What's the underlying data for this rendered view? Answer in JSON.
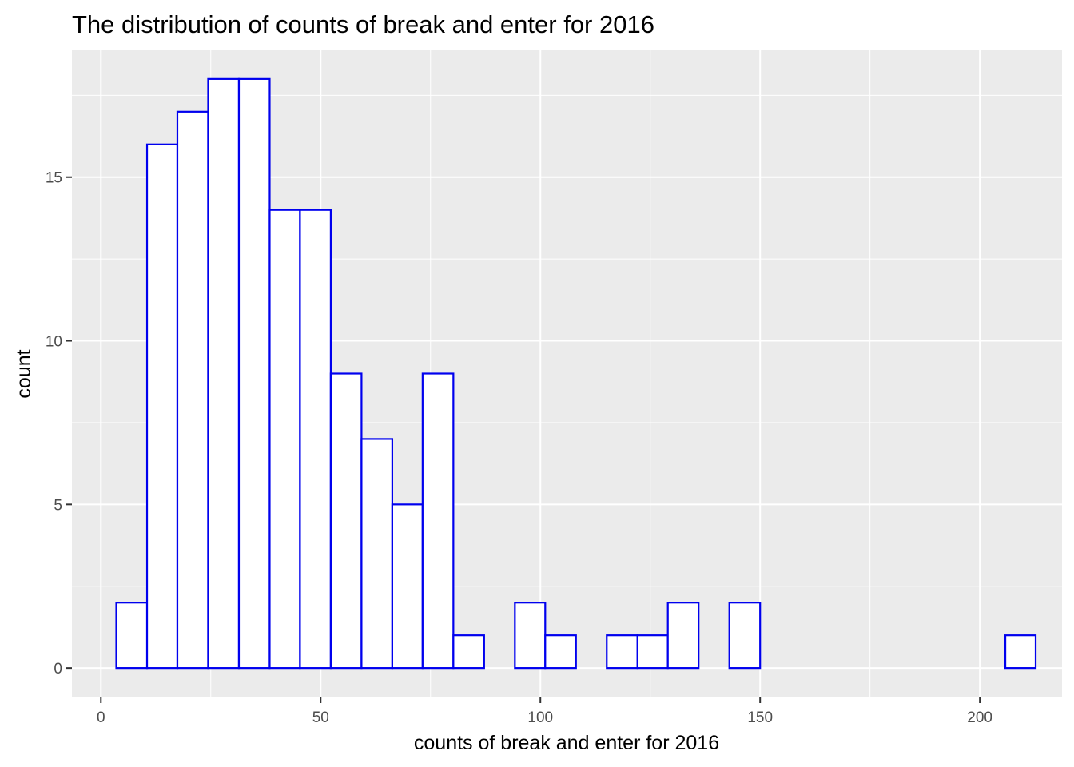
{
  "chart_data": {
    "type": "bar",
    "title": "The distribution of counts of break and enter for 2016",
    "xlabel": "counts of break and enter for 2016",
    "ylabel": "count",
    "xlim": [
      -6.6,
      218.7
    ],
    "ylim": [
      -0.9,
      18.9
    ],
    "x_ticks": [
      0,
      50,
      100,
      150,
      200
    ],
    "y_ticks": [
      0,
      5,
      10,
      15
    ],
    "bin_width": 6.975,
    "bins": [
      {
        "x0": 3.5,
        "x1": 10.5,
        "count": 2
      },
      {
        "x0": 10.5,
        "x1": 17.4,
        "count": 16
      },
      {
        "x0": 17.4,
        "x1": 24.4,
        "count": 17
      },
      {
        "x0": 24.4,
        "x1": 31.4,
        "count": 18
      },
      {
        "x0": 31.4,
        "x1": 38.4,
        "count": 18
      },
      {
        "x0": 38.4,
        "x1": 45.3,
        "count": 14
      },
      {
        "x0": 45.3,
        "x1": 52.3,
        "count": 14
      },
      {
        "x0": 52.3,
        "x1": 59.3,
        "count": 9
      },
      {
        "x0": 59.3,
        "x1": 66.3,
        "count": 7
      },
      {
        "x0": 66.3,
        "x1": 73.2,
        "count": 5
      },
      {
        "x0": 73.2,
        "x1": 80.2,
        "count": 9
      },
      {
        "x0": 80.2,
        "x1": 87.2,
        "count": 1
      },
      {
        "x0": 87.2,
        "x1": 94.2,
        "count": 0
      },
      {
        "x0": 94.2,
        "x1": 101.1,
        "count": 2
      },
      {
        "x0": 101.1,
        "x1": 108.1,
        "count": 1
      },
      {
        "x0": 108.1,
        "x1": 115.1,
        "count": 0
      },
      {
        "x0": 115.1,
        "x1": 122.1,
        "count": 1
      },
      {
        "x0": 122.1,
        "x1": 129.0,
        "count": 1
      },
      {
        "x0": 129.0,
        "x1": 136.0,
        "count": 2
      },
      {
        "x0": 136.0,
        "x1": 143.0,
        "count": 0
      },
      {
        "x0": 143.0,
        "x1": 150.0,
        "count": 2
      },
      {
        "x0": 150.0,
        "x1": 156.9,
        "count": 0
      },
      {
        "x0": 156.9,
        "x1": 163.9,
        "count": 0
      },
      {
        "x0": 163.9,
        "x1": 170.9,
        "count": 0
      },
      {
        "x0": 170.9,
        "x1": 177.9,
        "count": 0
      },
      {
        "x0": 177.9,
        "x1": 184.8,
        "count": 0
      },
      {
        "x0": 184.8,
        "x1": 191.8,
        "count": 0
      },
      {
        "x0": 191.8,
        "x1": 198.8,
        "count": 0
      },
      {
        "x0": 198.8,
        "x1": 205.8,
        "count": 0
      },
      {
        "x0": 205.8,
        "x1": 212.7,
        "count": 1
      }
    ],
    "grid": true,
    "colors": {
      "panel_background": "#ebebeb",
      "grid_major": "#ffffff",
      "bar_fill": "#ffffff",
      "bar_outline": "#0000ee",
      "tick": "#333333",
      "tick_label": "#4d4d4d",
      "text": "#000000"
    }
  }
}
